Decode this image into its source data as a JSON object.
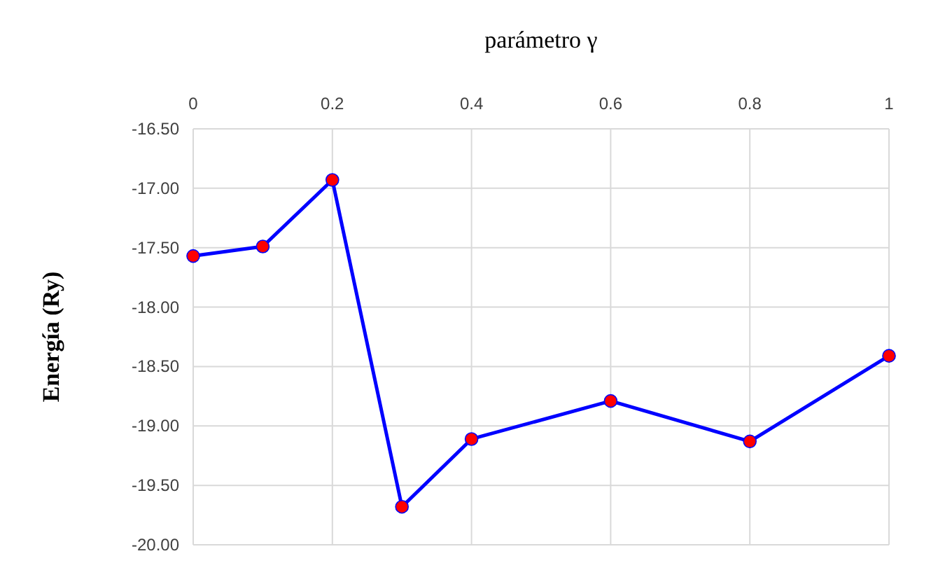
{
  "chart_data": {
    "type": "line",
    "xlabel": "parámetro γ",
    "ylabel": "Energía (Ry)",
    "x": [
      0,
      0.1,
      0.2,
      0.3,
      0.4,
      0.6,
      0.8,
      1
    ],
    "series": [
      {
        "color": "#0000ff",
        "values": [
          -17.57,
          -17.49,
          -16.93,
          -19.68,
          -19.11,
          -18.79,
          -19.13,
          -18.41
        ]
      }
    ],
    "xlim": [
      0,
      1
    ],
    "xticks": [
      0,
      0.2,
      0.4,
      0.6,
      0.8,
      1
    ],
    "ylim": [
      -20,
      -16.5
    ],
    "yticks": [
      {
        "value": -20,
        "label": "-20.00"
      },
      {
        "value": -19.5,
        "label": "-19.50"
      },
      {
        "value": -19,
        "label": "-19.00"
      },
      {
        "value": -18.5,
        "label": "-18.50"
      },
      {
        "value": -18,
        "label": "-18.00"
      },
      {
        "value": -17.5,
        "label": "-17.50"
      },
      {
        "value": -17,
        "label": "-17.00"
      },
      {
        "value": -16.5,
        "label": "-16.50"
      }
    ],
    "grid": true,
    "marker": "circle",
    "line_style": "solid"
  }
}
